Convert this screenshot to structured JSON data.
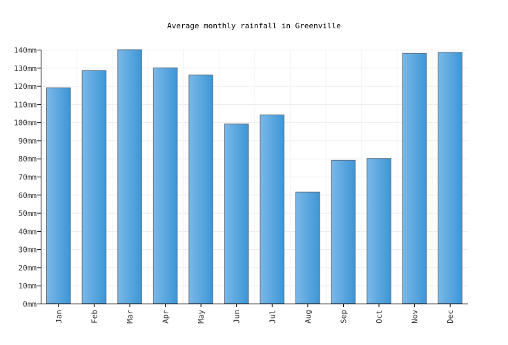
{
  "chart_data": {
    "type": "bar",
    "title": "Average monthly rainfall in Greenville",
    "categories": [
      "Jan",
      "Feb",
      "Mar",
      "Apr",
      "May",
      "Jun",
      "Jul",
      "Aug",
      "Sep",
      "Oct",
      "Nov",
      "Dec"
    ],
    "values": [
      119,
      128.5,
      140,
      130,
      126,
      99,
      104,
      61.5,
      79,
      80,
      138,
      138.5
    ],
    "unit": "mm",
    "ylim": [
      0,
      140
    ],
    "ytick_step": 10,
    "grid": true,
    "bar_color": "#4fa3e0"
  }
}
